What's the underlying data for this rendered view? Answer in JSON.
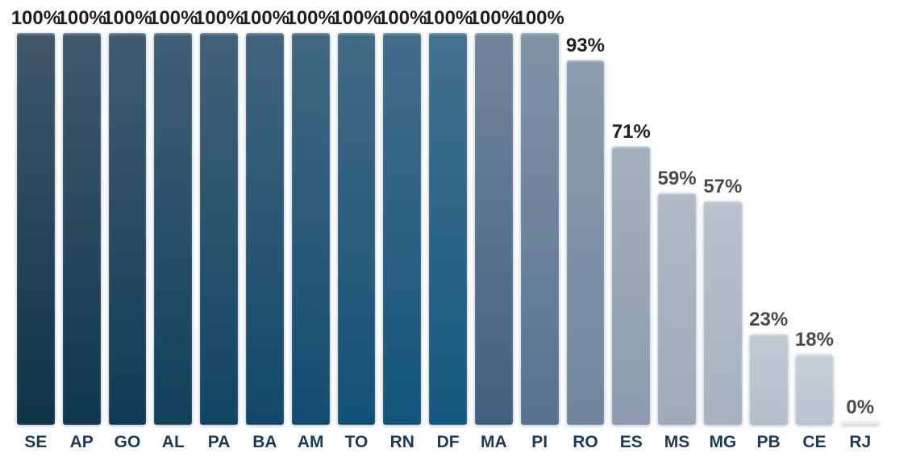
{
  "colors": {
    "background": "#FFFFFF",
    "axis_label": "#1B3A5A"
  },
  "chart_data": {
    "type": "bar",
    "title": "",
    "xlabel": "",
    "ylabel": "",
    "ylim": [
      0,
      100
    ],
    "grid": false,
    "legend": false,
    "baseline_height_px": 486,
    "categories": [
      "SE",
      "AP",
      "GO",
      "AL",
      "PA",
      "BA",
      "AM",
      "TO",
      "RN",
      "DF",
      "MA",
      "PI",
      "RO",
      "ES",
      "MS",
      "MG",
      "PB",
      "CE",
      "RJ"
    ],
    "values": [
      100,
      100,
      100,
      100,
      100,
      100,
      100,
      100,
      100,
      100,
      100,
      100,
      93,
      71,
      59,
      57,
      23,
      18,
      0
    ],
    "bars": [
      {
        "label": "SE",
        "value": 100,
        "display": "100%",
        "top_color": "#405669",
        "bottom_color": "#0D3347",
        "label_color": "#1F1F1F"
      },
      {
        "label": "AP",
        "value": 100,
        "display": "100%",
        "top_color": "#40586C",
        "bottom_color": "#0E374E",
        "label_color": "#1F1F1F"
      },
      {
        "label": "GO",
        "value": 100,
        "display": "100%",
        "top_color": "#405B70",
        "bottom_color": "#0F3B55",
        "label_color": "#1F1F1F"
      },
      {
        "label": "AL",
        "value": 100,
        "display": "100%",
        "top_color": "#415E75",
        "bottom_color": "#10405C",
        "label_color": "#1F1F1F"
      },
      {
        "label": "PA",
        "value": 100,
        "display": "100%",
        "top_color": "#416179",
        "bottom_color": "#114463",
        "label_color": "#1F1F1F"
      },
      {
        "label": "BA",
        "value": 100,
        "display": "100%",
        "top_color": "#41647D",
        "bottom_color": "#114869",
        "label_color": "#1F1F1F"
      },
      {
        "label": "AM",
        "value": 100,
        "display": "100%",
        "top_color": "#426781",
        "bottom_color": "#124C70",
        "label_color": "#1F1F1F"
      },
      {
        "label": "TO",
        "value": 100,
        "display": "100%",
        "top_color": "#426A85",
        "bottom_color": "#125076",
        "label_color": "#1F1F1F"
      },
      {
        "label": "RN",
        "value": 100,
        "display": "100%",
        "top_color": "#436D89",
        "bottom_color": "#13547B",
        "label_color": "#1F1F1F"
      },
      {
        "label": "DF",
        "value": 100,
        "display": "100%",
        "top_color": "#43708C",
        "bottom_color": "#135880",
        "label_color": "#1F1F1F"
      },
      {
        "label": "MA",
        "value": 100,
        "display": "100%",
        "top_color": "#71869B",
        "bottom_color": "#415F80",
        "label_color": "#1F1F1F"
      },
      {
        "label": "PI",
        "value": 100,
        "display": "100%",
        "top_color": "#8094A7",
        "bottom_color": "#587190",
        "label_color": "#1F1F1F"
      },
      {
        "label": "RO",
        "value": 93,
        "display": "93%",
        "top_color": "#8C9DAF",
        "bottom_color": "#70869E",
        "label_color": "#1F1F1F"
      },
      {
        "label": "ES",
        "value": 71,
        "display": "71%",
        "top_color": "#A3B0BD",
        "bottom_color": "#8C9CAE",
        "label_color": "#1F1F1F"
      },
      {
        "label": "MS",
        "value": 59,
        "display": "59%",
        "top_color": "#AFBAC6",
        "bottom_color": "#9DAAB9",
        "label_color": "#4A4A4A"
      },
      {
        "label": "MG",
        "value": 57,
        "display": "57%",
        "top_color": "#B8C2CC",
        "bottom_color": "#A5B1BF",
        "label_color": "#4A4A4A"
      },
      {
        "label": "PB",
        "value": 23,
        "display": "23%",
        "top_color": "#C1CAD3",
        "bottom_color": "#B3BEC9",
        "label_color": "#4A4A4A"
      },
      {
        "label": "CE",
        "value": 18,
        "display": "18%",
        "top_color": "#C6CFD7",
        "bottom_color": "#BAC4CE",
        "label_color": "#4A4A4A"
      },
      {
        "label": "RJ",
        "value": 0,
        "display": "0%",
        "top_color": "#E2E7EC",
        "bottom_color": "#DCE2E8",
        "label_color": "#4A4A4A"
      }
    ]
  }
}
